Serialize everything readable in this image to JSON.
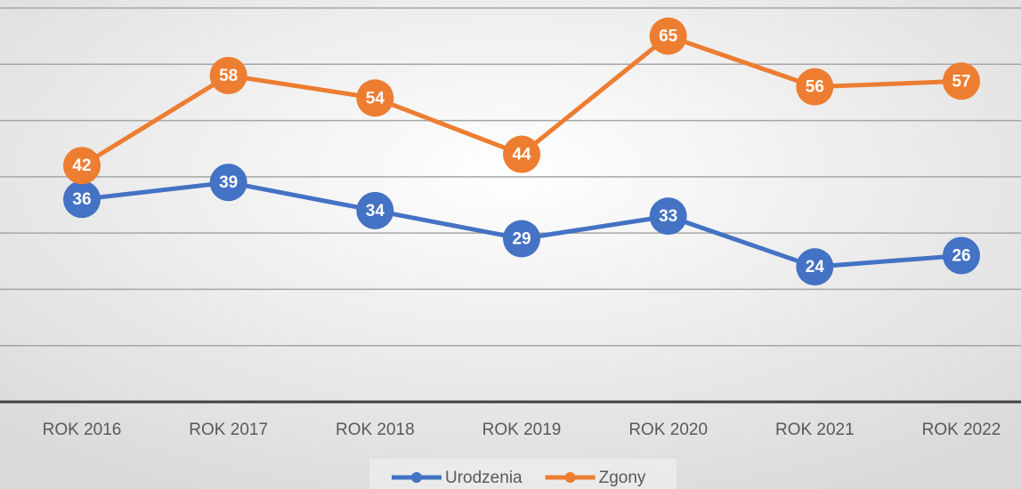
{
  "chart_data": {
    "type": "line",
    "categories": [
      "ROK 2016",
      "ROK 2017",
      "ROK 2018",
      "ROK 2019",
      "ROK 2020",
      "ROK 2021",
      "ROK 2022"
    ],
    "series": [
      {
        "name": "Urodzenia",
        "color": "#4472c4",
        "values": [
          36,
          39,
          34,
          29,
          33,
          24,
          26
        ]
      },
      {
        "name": "Zgony",
        "color": "#ed7d31",
        "values": [
          42,
          58,
          54,
          44,
          65,
          56,
          57
        ]
      }
    ],
    "ylim": [
      0,
      70
    ],
    "yticks": [
      0,
      10,
      20,
      30,
      40,
      50,
      60,
      70
    ],
    "grid": true,
    "legend": "bottom"
  }
}
